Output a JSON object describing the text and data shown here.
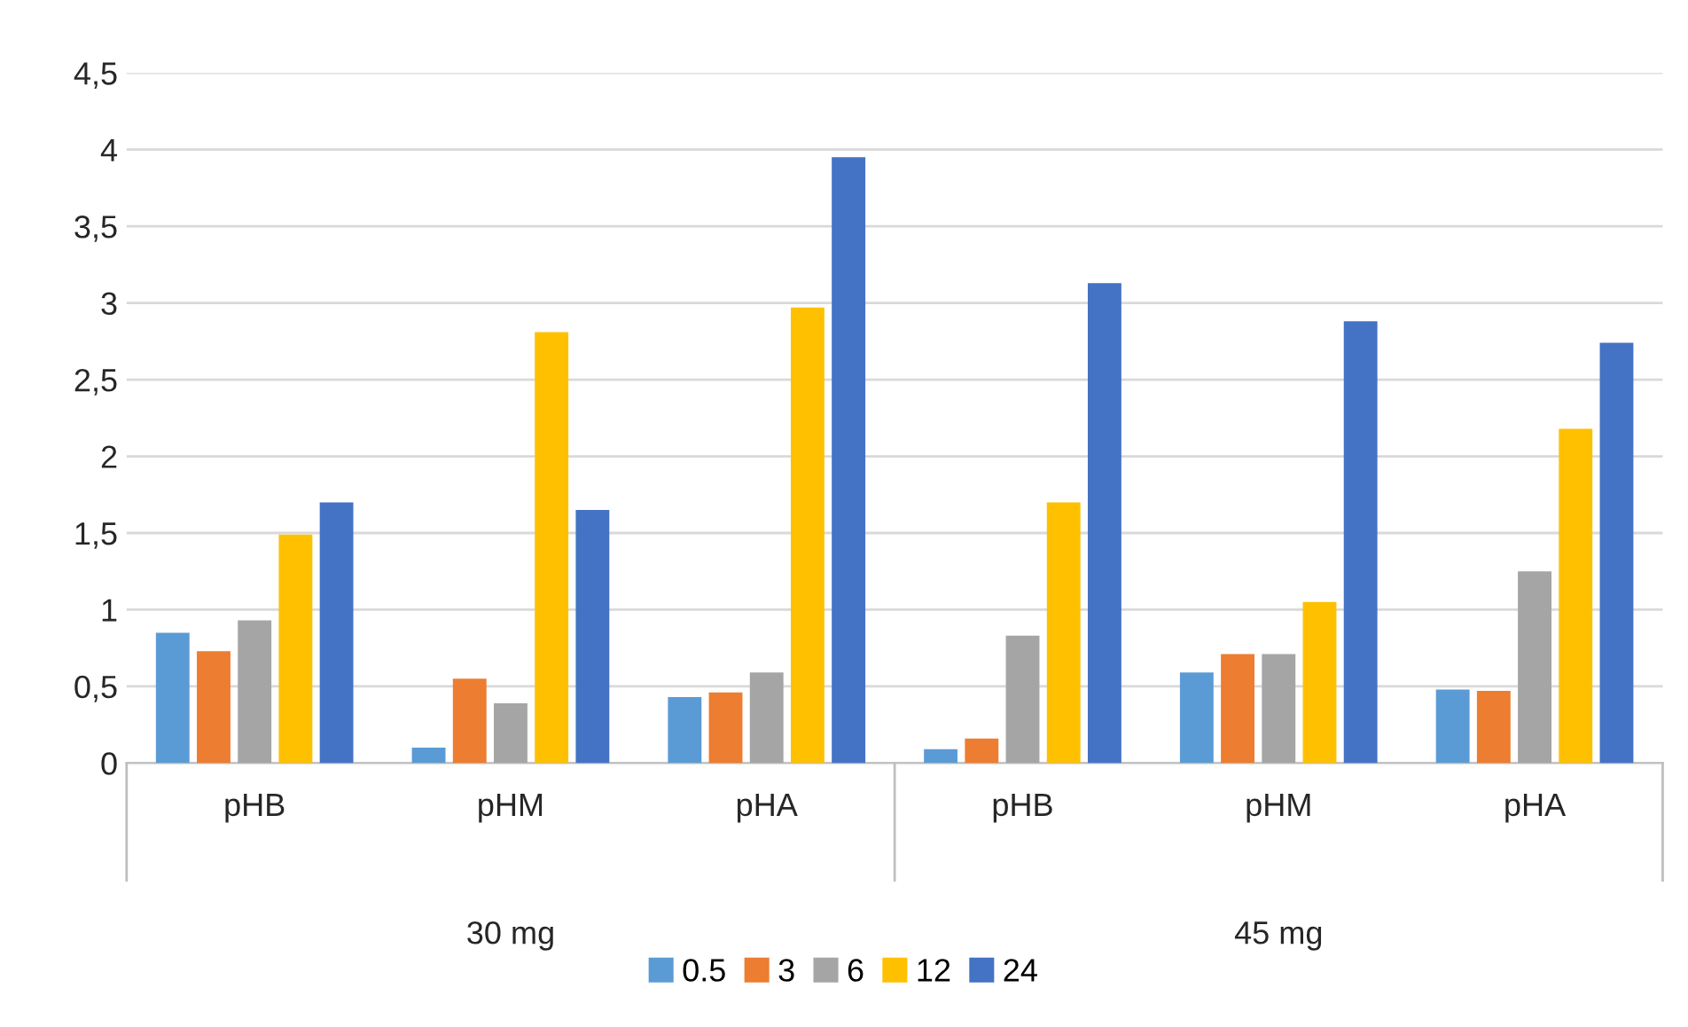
{
  "chart_data": {
    "type": "bar",
    "categories": [
      "pHB",
      "pHM",
      "pHA",
      "pHB",
      "pHM",
      "pHA"
    ],
    "series": [
      {
        "name": "0.5",
        "color": "#5b9bd5",
        "values": [
          0.85,
          0.1,
          0.43,
          0.09,
          0.59,
          0.48
        ]
      },
      {
        "name": "3",
        "color": "#ed7d31",
        "values": [
          0.73,
          0.55,
          0.46,
          0.16,
          0.71,
          0.47
        ]
      },
      {
        "name": "6",
        "color": "#a5a5a5",
        "values": [
          0.93,
          0.39,
          0.59,
          0.83,
          0.71,
          1.25
        ]
      },
      {
        "name": "12",
        "color": "#ffc000",
        "values": [
          1.49,
          2.81,
          2.97,
          1.7,
          1.05,
          2.18
        ]
      },
      {
        "name": "24",
        "color": "#4472c4",
        "values": [
          1.7,
          1.65,
          3.95,
          3.13,
          2.88,
          2.74
        ]
      }
    ],
    "annotations": [
      "30 mg",
      "45 mg"
    ],
    "ylim": [
      0,
      4.5
    ],
    "yticks": [
      0,
      {
        "value": 0.5,
        "label": "0,5"
      },
      1,
      {
        "value": 1.5,
        "label": "1,5"
      },
      2,
      {
        "value": 2.5,
        "label": "2,5"
      },
      3,
      {
        "value": 3.5,
        "label": "3,5"
      },
      4,
      {
        "value": 4.5,
        "label": "4,5"
      }
    ],
    "grid": "y",
    "legend": "bottom"
  }
}
